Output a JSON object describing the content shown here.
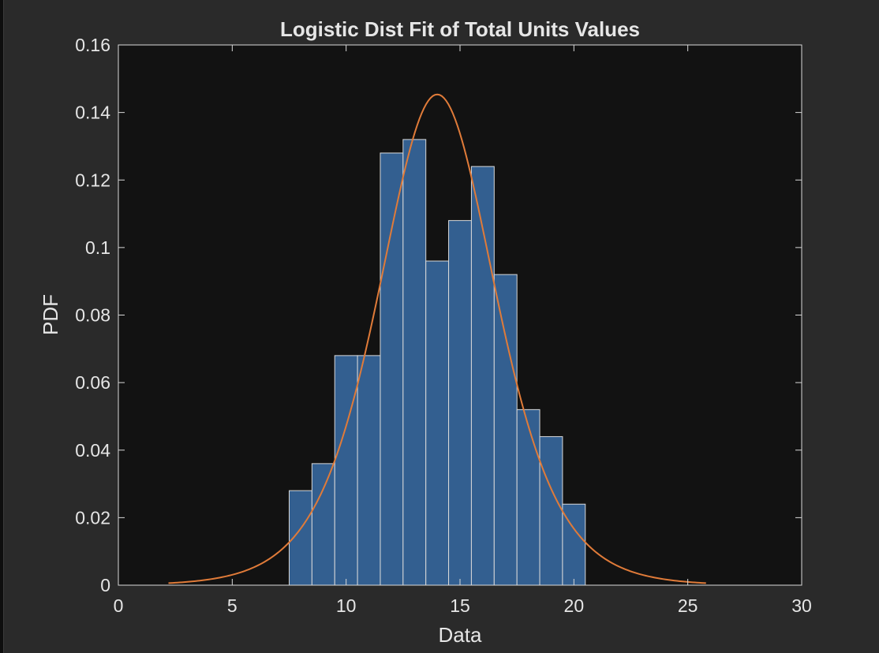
{
  "chart_data": {
    "type": "bar",
    "title": "Logistic Dist Fit of Total Units Values",
    "xlabel": "Data",
    "ylabel": "PDF",
    "xlim": [
      0,
      30
    ],
    "ylim": [
      0,
      0.16
    ],
    "xticks": [
      "0",
      "5",
      "10",
      "15",
      "20",
      "25",
      "30"
    ],
    "yticks": [
      "0",
      "0.02",
      "0.04",
      "0.06",
      "0.08",
      "0.1",
      "0.12",
      "0.14",
      "0.16"
    ],
    "bin_edges": [
      7.5,
      8.5,
      9.5,
      10.5,
      11.5,
      12.5,
      13.5,
      14.5,
      15.5,
      16.5,
      17.5,
      18.5,
      19.5,
      20.5
    ],
    "values": [
      0.028,
      0.036,
      0.068,
      0.068,
      0.128,
      0.132,
      0.096,
      0.108,
      0.124,
      0.092,
      0.052,
      0.044,
      0.024
    ],
    "fit": {
      "name": "Logistic",
      "mu": 14.0,
      "sigma": 1.72,
      "x_range": [
        2.2,
        25.8
      ]
    },
    "grid": false,
    "colors": {
      "background": "#121212",
      "bar_fill": "#335f90",
      "bar_edge": "#d9d9d9",
      "fit_line": "#e07b39",
      "axis": "#d9d9d9",
      "text": "#e6e6e6"
    }
  }
}
